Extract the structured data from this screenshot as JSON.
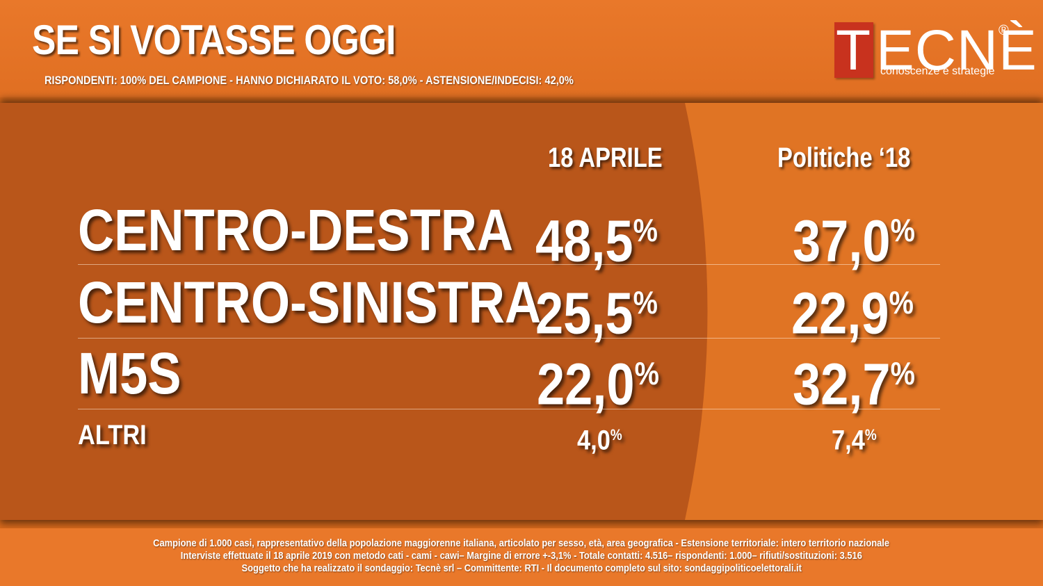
{
  "header": {
    "title": "SE SI VOTASSE OGGI",
    "subtitle": "RISPONDENTI: 100% DEL CAMPIONE - HANNO DICHIARATO IL VOTO: 58,0%  - ASTENSIONE/INDECISI: 42,0%"
  },
  "logo": {
    "letter": "T",
    "rest": "ECNÈ",
    "registered": "®",
    "tagline": "conoscenze e strategie"
  },
  "chart_data": {
    "type": "table",
    "columns": [
      "18 APRILE",
      "Politiche ‘18"
    ],
    "rows": [
      {
        "label": "CENTRO-DESTRA",
        "values": [
          "48,5",
          "37,0"
        ],
        "unit": "%"
      },
      {
        "label": "CENTRO-SINISTRA",
        "values": [
          "25,5",
          "22,9"
        ],
        "unit": "%"
      },
      {
        "label": "M5S",
        "values": [
          "22,0",
          "32,7"
        ],
        "unit": "%"
      },
      {
        "label": "ALTRI",
        "values": [
          "4,0",
          "7,4"
        ],
        "unit": "%"
      }
    ]
  },
  "footer": {
    "line1": "Campione di 1.000 casi, rappresentativo della popolazione maggiorenne italiana, articolato per sesso, età, area geografica - Estensione territoriale: intero territorio nazionale",
    "line2": "Interviste effettuate il 18 aprile 2019 con metodo cati - cami - cawi– Margine di errore +-3,1%  - Totale contatti: 4.516– rispondenti:  1.000– rifiuti/sostituzioni: 3.516",
    "line3": "Soggetto che ha realizzato il sondaggio: Tecnè srl – Committente: RTI - Il documento completo sul sito: sondaggipoliticoelettorali.it"
  },
  "colors": {
    "background": "#e07424",
    "dark_panel": "#b9561a",
    "logo_red": "#c8321e",
    "text": "#ffffff"
  }
}
